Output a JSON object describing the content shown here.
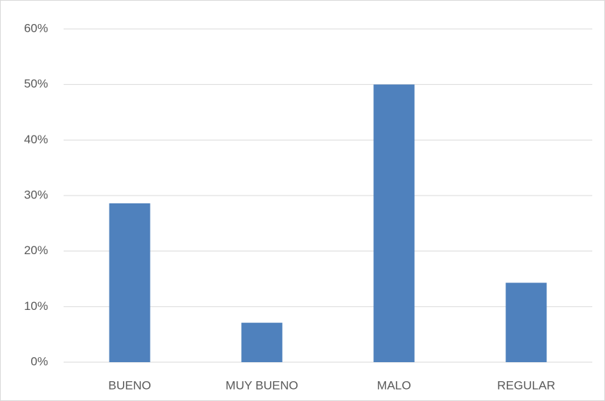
{
  "chart_data": {
    "type": "bar",
    "categories": [
      "BUENO",
      "MUY BUENO",
      "MALO",
      "REGULAR"
    ],
    "values": [
      28.6,
      7.1,
      50,
      14.3
    ],
    "color": "#4f81bd",
    "ylim": [
      0,
      60
    ],
    "yticks": [
      {
        "value": 0,
        "label": "0%"
      },
      {
        "value": 10,
        "label": "10%"
      },
      {
        "value": 20,
        "label": "20%"
      },
      {
        "value": 30,
        "label": "30%"
      },
      {
        "value": 40,
        "label": "40%"
      },
      {
        "value": 50,
        "label": "50%"
      },
      {
        "value": 60,
        "label": "60%"
      }
    ],
    "grid": true
  }
}
